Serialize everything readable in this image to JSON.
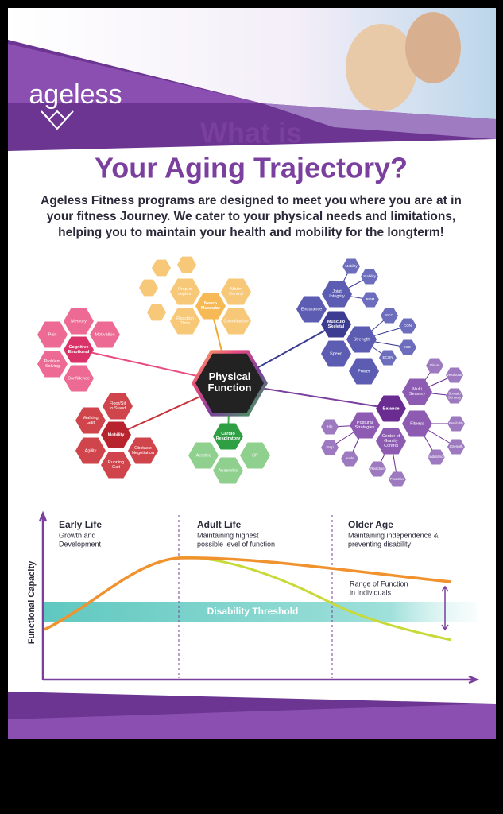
{
  "header": {
    "brand": "ageless",
    "title": [
      "What is",
      "Your Aging Trajectory?"
    ],
    "intro": [
      "Ageless Fitness programs are designed to meet you where you are at in",
      "your fitness Journey. We cater to your physical needs and limitations,",
      "helping you to maintain your health and mobility for the longterm!"
    ]
  },
  "diagram": {
    "center": "Physical Function",
    "clusters": [
      {
        "hub": "Neuro Muscular",
        "items": [
          "Proprio ception",
          "Motor Control",
          "Coordination",
          "Reaction Time"
        ]
      },
      {
        "hub": "Cognitive Emotional",
        "items": [
          "Memory",
          "Motivation",
          "Pain",
          "Problem Solving",
          "Confidence"
        ]
      },
      {
        "hub": "Musculo Skeletal",
        "items": [
          "Joint Integrity",
          "Endurance",
          "Strength",
          "Speed",
          "Power"
        ],
        "minor": [
          "Mobility",
          "Stability",
          "ROM",
          "ECC",
          "CON",
          "ISO",
          "ECON"
        ]
      },
      {
        "hub": "Mobility",
        "items": [
          "Floor/Sit to Stand",
          "Walking Gait",
          "Agility",
          "Obstacle Negotiation",
          "Running Gait"
        ]
      },
      {
        "hub": "Cardio Respiratory",
        "items": [
          "Aerobic",
          "CP",
          "Anaerobic"
        ]
      },
      {
        "hub": "Balance",
        "items": [
          "Multi Sensory",
          "Postural Strategies",
          "Fitness",
          "Center of Gravity Control"
        ],
        "minor": [
          "Visual",
          "Vestibular",
          "Somato Sensory",
          "Flexibility",
          "Strength",
          "Endurance",
          "Hip",
          "Step",
          "Ankle",
          "Reactive",
          "Proactive"
        ]
      }
    ]
  },
  "trajectory": {
    "y_axis": "Functional Capacity",
    "phases": [
      {
        "name": "Early Life",
        "desc": [
          "Growth and",
          "Development"
        ]
      },
      {
        "name": "Adult Life",
        "desc": [
          "Maintaining highest",
          "possible level of function"
        ]
      },
      {
        "name": "Older Age",
        "desc": [
          "Maintaining independence &",
          "preventing disability"
        ]
      }
    ],
    "range_note": [
      "Range of Function",
      "in Individuals"
    ],
    "threshold": "Disability Threshold"
  }
}
